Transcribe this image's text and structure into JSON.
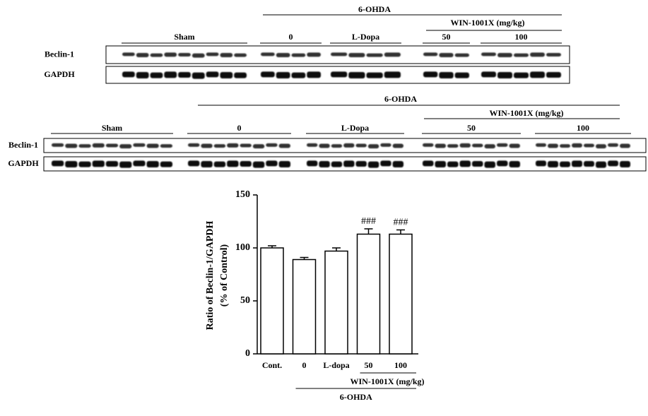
{
  "blots": [
    {
      "treatment": "6-OHDA",
      "dose_label": "WIN-1001X (mg/kg)",
      "lanes": [
        "Sham",
        "0",
        "L-Dopa",
        "50",
        "100"
      ],
      "rows": [
        "Beclin-1",
        "GAPDH"
      ]
    },
    {
      "treatment": "6-OHDA",
      "dose_label": "WIN-1001X (mg/kg)",
      "lanes": [
        "Sham",
        "0",
        "L-Dopa",
        "50",
        "100"
      ],
      "rows": [
        "Beclin-1",
        "GAPDH"
      ]
    }
  ],
  "chart_data": {
    "type": "bar",
    "y_label": [
      "Ratio of Beclin-1/GAPDH",
      "(% of Control)"
    ],
    "categories": [
      "Cont.",
      "0",
      "L-dopa",
      "50",
      "100"
    ],
    "values": [
      100,
      89,
      97,
      113,
      113
    ],
    "errors": [
      2,
      2,
      3,
      5,
      4
    ],
    "annotations": [
      null,
      null,
      null,
      "###",
      "###"
    ],
    "color": "#ffffff",
    "ylim": [
      0,
      150
    ],
    "yticks": [
      0,
      50,
      100,
      150
    ],
    "groups": [
      {
        "label": "WIN-1001X (mg/kg)",
        "span": [
          3,
          4
        ]
      },
      {
        "label": "6-OHDA",
        "span": [
          1,
          4
        ]
      }
    ]
  }
}
